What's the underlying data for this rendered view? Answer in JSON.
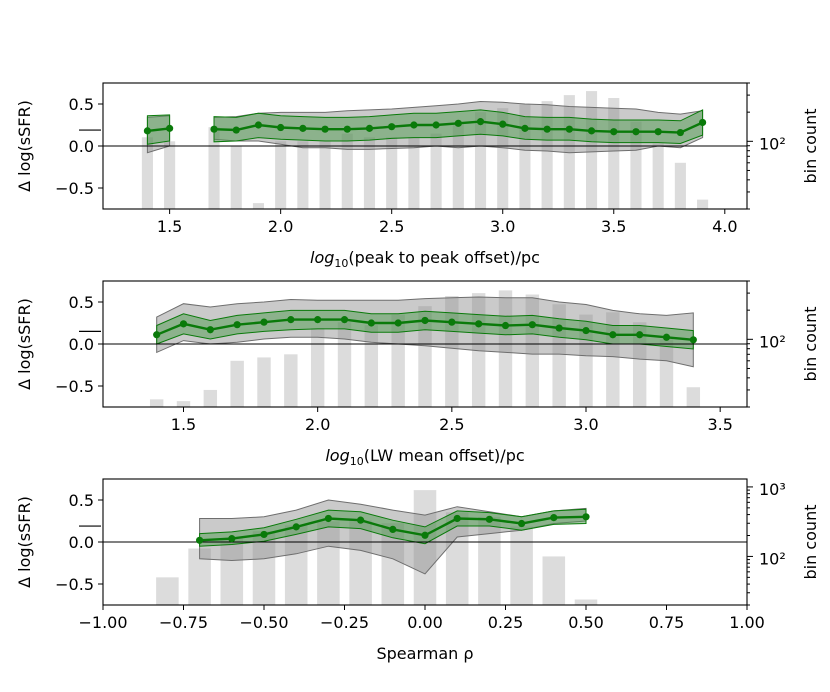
{
  "colors": {
    "bar": "#dcdcdc",
    "grey_band": "#8a8a8a",
    "grey_band_edge": "#6e6e6e",
    "green_band": "#4e9a4e",
    "green_line": "#0a7a0a",
    "axis": "#000000"
  },
  "chart_data": [
    {
      "type": "line",
      "title": "",
      "xlabel_pre": "log",
      "xlabel_sub": "10",
      "xlabel_post": "(peak to peak offset)/pc",
      "ylabel": "Δ log(sSFR)",
      "ylabel_right": "bin count",
      "xlim": [
        1.2,
        4.1
      ],
      "ylim": [
        -0.75,
        0.75
      ],
      "xticks": [
        1.5,
        2.0,
        2.5,
        3.0,
        3.5,
        4.0
      ],
      "xtick_labels": [
        "1.5",
        "2.0",
        "2.5",
        "3.0",
        "3.5",
        "4.0"
      ],
      "yticks": [
        0.5,
        0.0,
        -0.5
      ],
      "ytick_labels": [
        "0.5",
        "0.0",
        "−0.5"
      ],
      "right_log_range": [
        20,
        400
      ],
      "right_ticks": [
        100
      ],
      "right_tick_labels": [
        "10²"
      ],
      "reference_level": 0.19,
      "bar_width": 0.05,
      "bars": {
        "x": [
          1.4,
          1.5,
          1.7,
          1.8,
          1.9,
          2.0,
          2.1,
          2.2,
          2.3,
          2.4,
          2.5,
          2.6,
          2.7,
          2.8,
          2.9,
          3.0,
          3.1,
          3.2,
          3.3,
          3.4,
          3.5,
          3.6,
          3.7,
          3.8,
          3.9
        ],
        "counts": [
          110,
          100,
          140,
          90,
          23,
          100,
          100,
          100,
          120,
          110,
          110,
          110,
          120,
          150,
          200,
          220,
          240,
          260,
          300,
          330,
          280,
          160,
          95,
          60,
          25
        ]
      },
      "line": {
        "x": [
          1.4,
          1.5,
          1.7,
          1.8,
          1.9,
          2.0,
          2.1,
          2.2,
          2.3,
          2.4,
          2.5,
          2.6,
          2.7,
          2.8,
          2.9,
          3.0,
          3.1,
          3.2,
          3.3,
          3.4,
          3.5,
          3.6,
          3.7,
          3.8,
          3.9
        ],
        "y": [
          0.18,
          0.21,
          0.2,
          0.19,
          0.25,
          0.22,
          0.21,
          0.2,
          0.2,
          0.21,
          0.23,
          0.25,
          0.25,
          0.27,
          0.29,
          0.26,
          0.21,
          0.2,
          0.2,
          0.18,
          0.17,
          0.17,
          0.17,
          0.16,
          0.28
        ],
        "breaks": [
          1
        ]
      },
      "green_band": {
        "lower": [
          0.02,
          0.06,
          0.05,
          0.06,
          0.1,
          0.08,
          0.07,
          0.06,
          0.06,
          0.07,
          0.09,
          0.1,
          0.1,
          0.12,
          0.14,
          0.12,
          0.08,
          0.07,
          0.07,
          0.05,
          0.04,
          0.04,
          0.04,
          0.03,
          0.13
        ],
        "upper": [
          0.36,
          0.37,
          0.35,
          0.34,
          0.39,
          0.36,
          0.35,
          0.34,
          0.34,
          0.35,
          0.37,
          0.39,
          0.39,
          0.41,
          0.43,
          0.4,
          0.35,
          0.34,
          0.34,
          0.32,
          0.31,
          0.31,
          0.31,
          0.3,
          0.43
        ]
      },
      "grey_band": {
        "lower": [
          -0.08,
          0.0,
          0.08,
          0.06,
          0.06,
          0.02,
          -0.02,
          -0.02,
          -0.04,
          -0.04,
          -0.03,
          -0.02,
          0.0,
          -0.02,
          0.0,
          -0.02,
          -0.05,
          -0.06,
          -0.08,
          -0.07,
          -0.06,
          -0.05,
          0.0,
          -0.02,
          0.1
        ],
        "upper": [
          0.34,
          0.36,
          0.34,
          0.35,
          0.39,
          0.4,
          0.4,
          0.4,
          0.42,
          0.43,
          0.44,
          0.46,
          0.48,
          0.5,
          0.53,
          0.52,
          0.5,
          0.49,
          0.47,
          0.46,
          0.45,
          0.44,
          0.4,
          0.38,
          0.42
        ]
      }
    },
    {
      "type": "line",
      "title": "",
      "xlabel_pre": "log",
      "xlabel_sub": "10",
      "xlabel_post": "(LW mean offset)/pc",
      "ylabel": "Δ log(sSFR)",
      "ylabel_right": "bin count",
      "xlim": [
        1.2,
        3.6
      ],
      "ylim": [
        -0.75,
        0.75
      ],
      "xticks": [
        1.5,
        2.0,
        2.5,
        3.0,
        3.5
      ],
      "xtick_labels": [
        "1.5",
        "2.0",
        "2.5",
        "3.0",
        "3.5"
      ],
      "yticks": [
        0.5,
        0.0,
        -0.5
      ],
      "ytick_labels": [
        "0.5",
        "0.0",
        "−0.5"
      ],
      "right_log_range": [
        20,
        400
      ],
      "right_ticks": [
        100
      ],
      "right_tick_labels": [
        "10²"
      ],
      "reference_level": 0.15,
      "bar_width": 0.05,
      "bars": {
        "x": [
          1.4,
          1.5,
          1.6,
          1.7,
          1.8,
          1.9,
          2.0,
          2.1,
          2.2,
          2.3,
          2.4,
          2.5,
          2.6,
          2.7,
          2.8,
          2.9,
          3.0,
          3.1,
          3.2,
          3.3,
          3.4
        ],
        "counts": [
          24,
          23,
          30,
          60,
          65,
          70,
          130,
          150,
          140,
          180,
          220,
          280,
          300,
          320,
          290,
          230,
          180,
          190,
          150,
          100,
          32
        ]
      },
      "line": {
        "x": [
          1.4,
          1.5,
          1.6,
          1.7,
          1.8,
          1.9,
          2.0,
          2.1,
          2.2,
          2.3,
          2.4,
          2.5,
          2.6,
          2.7,
          2.8,
          2.9,
          3.0,
          3.1,
          3.2,
          3.3,
          3.4
        ],
        "y": [
          0.11,
          0.24,
          0.17,
          0.23,
          0.26,
          0.29,
          0.29,
          0.29,
          0.25,
          0.25,
          0.28,
          0.26,
          0.24,
          0.22,
          0.23,
          0.19,
          0.16,
          0.11,
          0.11,
          0.08,
          0.05
        ],
        "breaks": []
      },
      "green_band": {
        "lower": [
          0.0,
          0.12,
          0.06,
          0.12,
          0.15,
          0.17,
          0.18,
          0.18,
          0.14,
          0.14,
          0.17,
          0.15,
          0.13,
          0.11,
          0.12,
          0.08,
          0.05,
          0.0,
          0.0,
          -0.03,
          -0.06
        ],
        "upper": [
          0.22,
          0.36,
          0.28,
          0.34,
          0.37,
          0.4,
          0.4,
          0.4,
          0.36,
          0.36,
          0.39,
          0.37,
          0.35,
          0.33,
          0.34,
          0.3,
          0.27,
          0.22,
          0.22,
          0.19,
          0.16
        ]
      },
      "grey_band": {
        "lower": [
          -0.1,
          0.04,
          0.0,
          0.02,
          0.06,
          0.08,
          0.08,
          0.06,
          0.02,
          0.0,
          -0.02,
          -0.05,
          -0.08,
          -0.1,
          -0.12,
          -0.12,
          -0.14,
          -0.15,
          -0.18,
          -0.2,
          -0.27
        ],
        "upper": [
          0.32,
          0.48,
          0.44,
          0.48,
          0.5,
          0.53,
          0.52,
          0.52,
          0.52,
          0.52,
          0.54,
          0.55,
          0.56,
          0.55,
          0.55,
          0.5,
          0.47,
          0.4,
          0.36,
          0.34,
          0.37
        ]
      }
    },
    {
      "type": "line",
      "title": "",
      "xlabel_pre": "",
      "xlabel_sub": "",
      "xlabel_post": "Spearman ρ",
      "ylabel": "Δ log(sSFR)",
      "ylabel_right": "bin count",
      "xlim": [
        -1.0,
        1.0
      ],
      "ylim": [
        -0.75,
        0.75
      ],
      "xticks": [
        -1.0,
        -0.75,
        -0.5,
        -0.25,
        0.0,
        0.25,
        0.5,
        0.75,
        1.0
      ],
      "xtick_labels": [
        "−1.00",
        "−0.75",
        "−0.50",
        "−0.25",
        "0.00",
        "0.25",
        "0.50",
        "0.75",
        "1.00"
      ],
      "yticks": [
        0.5,
        0.0,
        -0.5
      ],
      "ytick_labels": [
        "0.5",
        "0.0",
        "−0.5"
      ],
      "right_log_range": [
        20,
        1300
      ],
      "right_ticks": [
        100,
        1000
      ],
      "right_tick_labels": [
        "10²",
        "10³"
      ],
      "reference_level": 0.19,
      "bar_width": 0.07,
      "bars": {
        "x": [
          -0.8,
          -0.7,
          -0.6,
          -0.5,
          -0.4,
          -0.3,
          -0.2,
          -0.1,
          0.0,
          0.1,
          0.2,
          0.3,
          0.4,
          0.5
        ],
        "counts": [
          50,
          130,
          180,
          230,
          280,
          320,
          330,
          300,
          900,
          430,
          370,
          270,
          100,
          24
        ]
      },
      "line": {
        "x": [
          -0.7,
          -0.6,
          -0.5,
          -0.4,
          -0.3,
          -0.2,
          -0.1,
          0.0,
          0.1,
          0.2,
          0.3,
          0.4,
          0.5
        ],
        "y": [
          0.02,
          0.04,
          0.09,
          0.18,
          0.28,
          0.26,
          0.15,
          0.08,
          0.28,
          0.27,
          0.22,
          0.29,
          0.3
        ],
        "breaks": []
      },
      "green_band": {
        "lower": [
          -0.05,
          -0.03,
          0.01,
          0.09,
          0.18,
          0.16,
          0.05,
          -0.02,
          0.19,
          0.19,
          0.14,
          0.21,
          0.22
        ],
        "upper": [
          0.1,
          0.12,
          0.17,
          0.27,
          0.38,
          0.36,
          0.26,
          0.18,
          0.37,
          0.35,
          0.3,
          0.37,
          0.39
        ]
      },
      "grey_band": {
        "lower": [
          -0.2,
          -0.22,
          -0.2,
          -0.14,
          -0.05,
          -0.1,
          -0.2,
          -0.38,
          0.06,
          0.1,
          0.14,
          0.22,
          0.25
        ],
        "upper": [
          0.28,
          0.28,
          0.3,
          0.38,
          0.5,
          0.45,
          0.38,
          0.32,
          0.42,
          0.36,
          0.3,
          0.37,
          0.4
        ]
      }
    }
  ]
}
